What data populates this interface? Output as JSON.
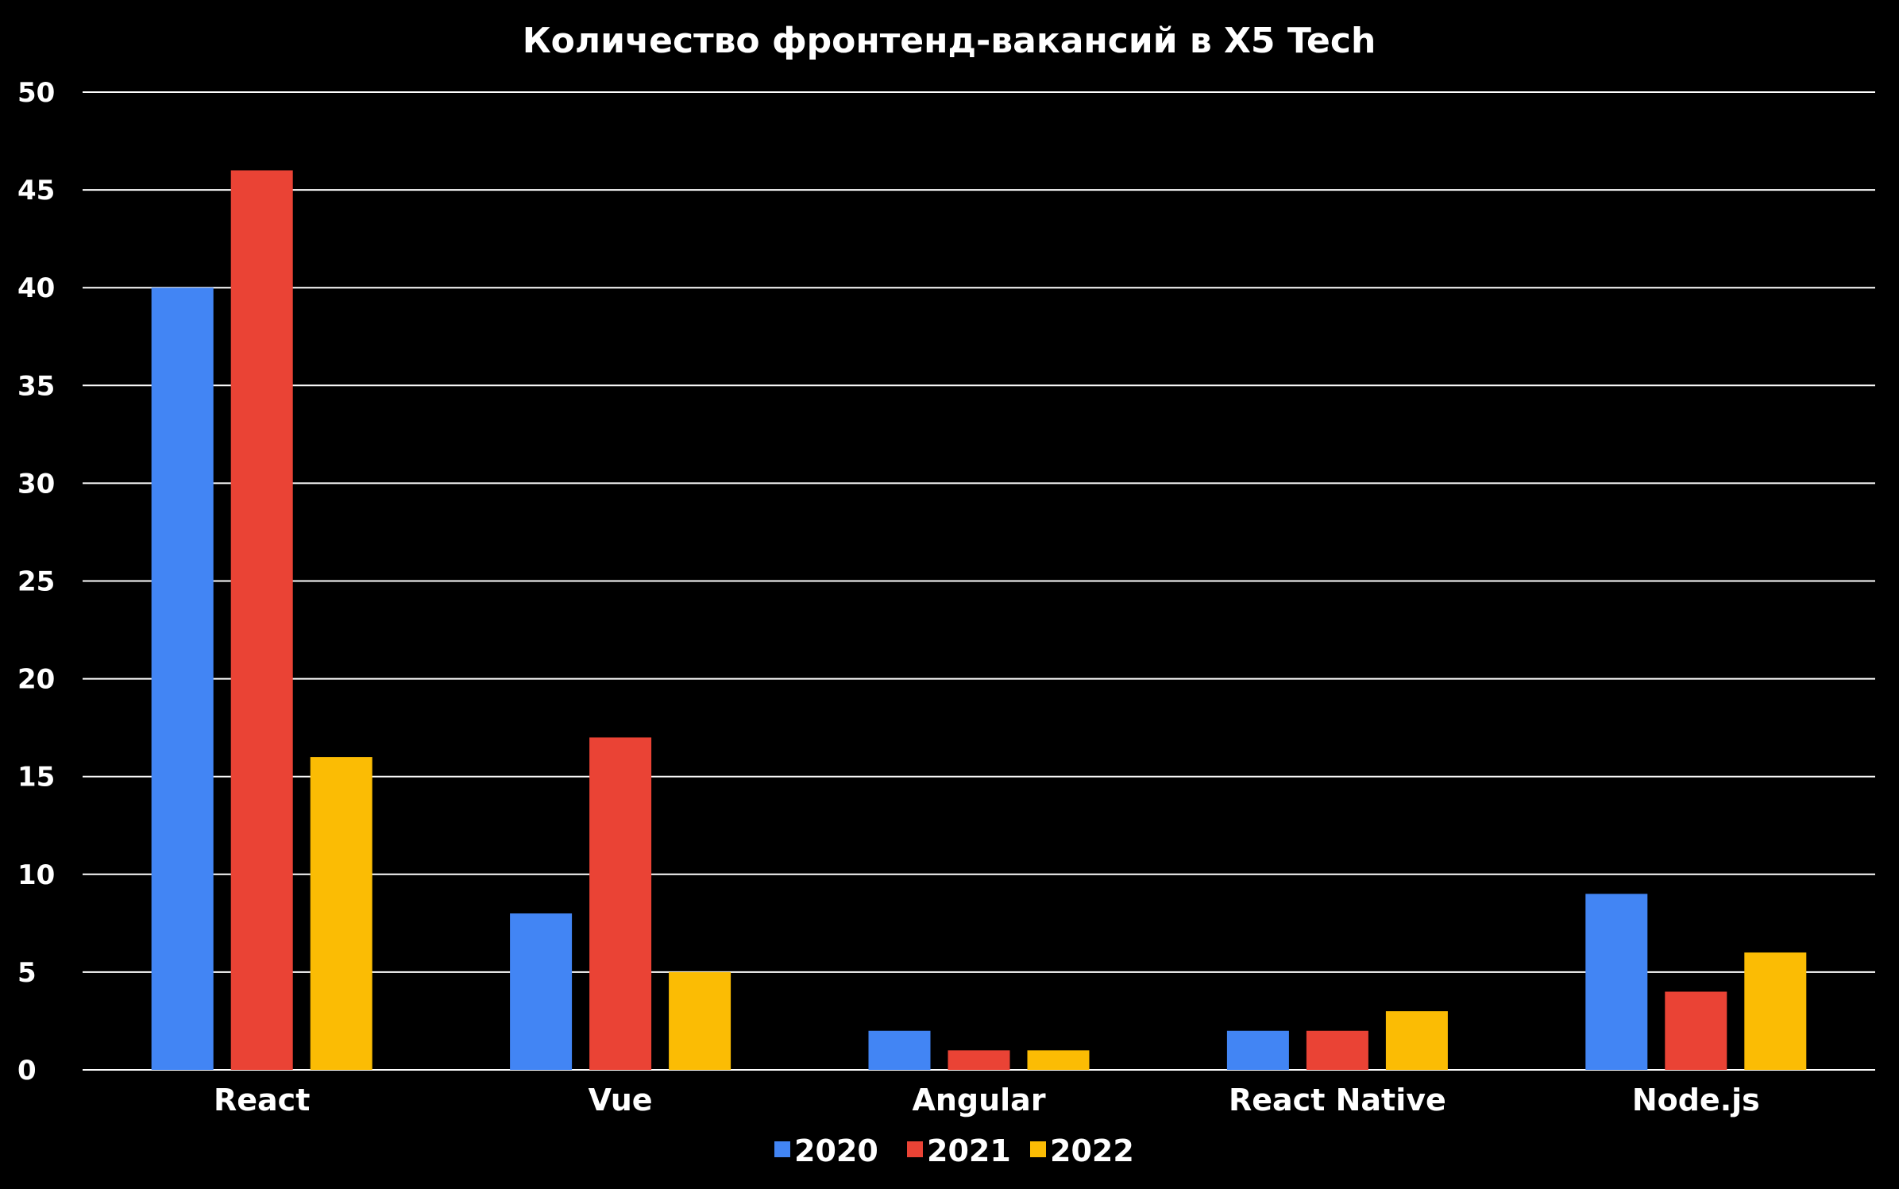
{
  "chart_data": {
    "type": "bar",
    "title": "Количество фронтенд-вакансий в X5 Tech",
    "xlabel": "",
    "ylabel": "",
    "categories": [
      "React",
      "Vue",
      "Angular",
      "React Native",
      "Node.js"
    ],
    "series": [
      {
        "name": "2020",
        "color": "#4285F4",
        "values": [
          40,
          8,
          2,
          2,
          9
        ]
      },
      {
        "name": "2021",
        "color": "#EA4335",
        "values": [
          46,
          17,
          1,
          2,
          4
        ]
      },
      {
        "name": "2022",
        "color": "#FBBC04",
        "values": [
          16,
          5,
          1,
          3,
          6
        ]
      }
    ],
    "ylim": [
      0,
      50
    ],
    "yticks": [
      "0",
      "5",
      "10",
      "15",
      "20",
      "25",
      "30",
      "35",
      "40",
      "45",
      "50"
    ],
    "grid": true,
    "legend_position": "bottom",
    "background": "#000000",
    "gridline_color": "#ffffff"
  }
}
